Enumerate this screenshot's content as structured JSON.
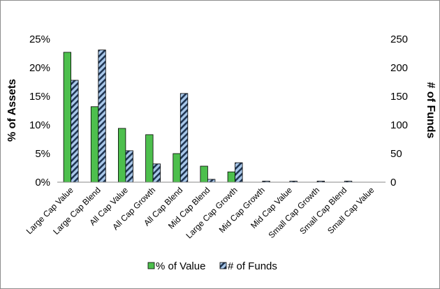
{
  "chart_data": {
    "type": "bar",
    "title": "",
    "categories": [
      "Large Cap Value",
      "Large Cap Blend",
      "All Cap Value",
      "All Cap Growth",
      "All Cap Blend",
      "Mid Cap Blend",
      "Large Cap Growth",
      "Mid Cap Growth",
      "Mid Cap Value",
      "Small Cap Growth",
      "Small Cap Blend",
      "Small Cap Value"
    ],
    "series": [
      {
        "name": "% of Value",
        "axis": "left",
        "color": "#4dbf4d",
        "pattern": "solid",
        "values": [
          22.7,
          13.2,
          9.4,
          8.3,
          5.0,
          2.8,
          1.8,
          0,
          0,
          0,
          0,
          0
        ]
      },
      {
        "name": "# of Funds",
        "axis": "right",
        "color": "#7fa7d4",
        "pattern": "diagonal-stripes",
        "values": [
          178,
          231,
          55,
          32,
          155,
          5,
          34,
          2,
          2,
          2,
          2,
          0
        ]
      }
    ],
    "ylabel": "% of Assets",
    "y2label": "# of Funds",
    "ylim": [
      0,
      25
    ],
    "y2lim": [
      0,
      250
    ],
    "yticks": [
      "0%",
      "5%",
      "10%",
      "15%",
      "20%",
      "25%"
    ],
    "y2ticks": [
      "0",
      "50",
      "100",
      "150",
      "200",
      "250"
    ],
    "grid": false,
    "legend_position": "bottom"
  }
}
